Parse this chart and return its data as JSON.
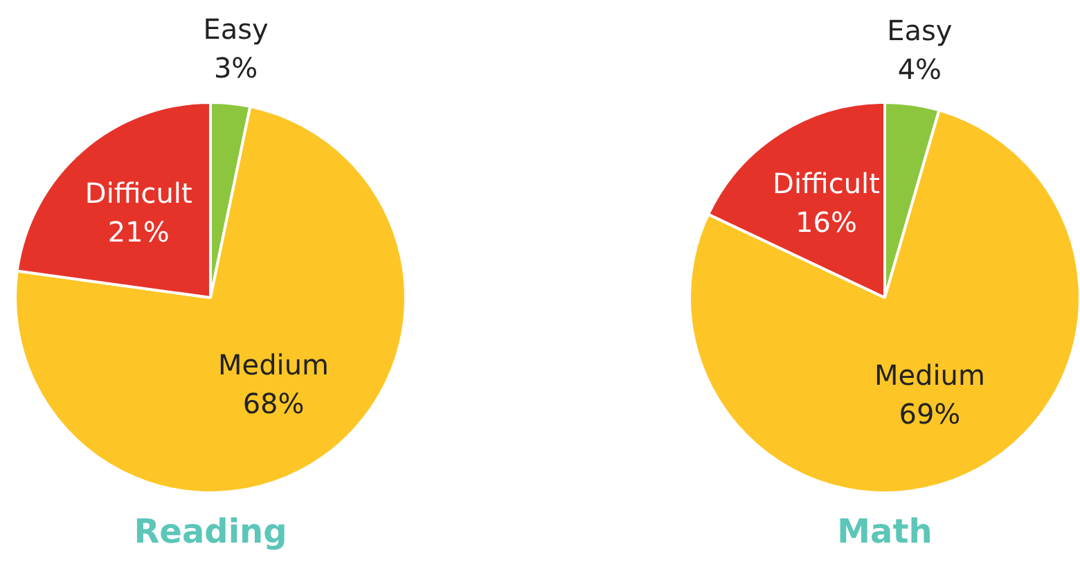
{
  "chart_data": [
    {
      "type": "pie",
      "title": "Reading",
      "categories": [
        "Easy",
        "Medium",
        "Difficult"
      ],
      "values": [
        3,
        68,
        21
      ],
      "colors": [
        "#8cc63f",
        "#fdc626",
        "#e5332a"
      ],
      "value_labels": [
        "3%",
        "68%",
        "21%"
      ]
    },
    {
      "type": "pie",
      "title": "Math",
      "categories": [
        "Easy",
        "Medium",
        "Difficult"
      ],
      "values": [
        4,
        69,
        16
      ],
      "colors": [
        "#8cc63f",
        "#fdc626",
        "#e5332a"
      ],
      "value_labels": [
        "4%",
        "69%",
        "16%"
      ]
    }
  ]
}
